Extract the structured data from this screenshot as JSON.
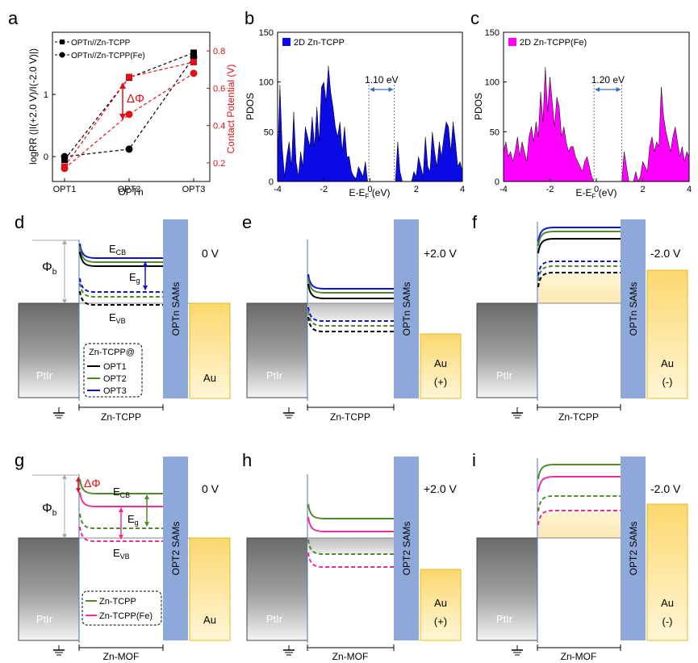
{
  "colors": {
    "black": "#000000",
    "green": "#4f8a2b",
    "blue": "#1010dd",
    "pink": "#ee2d9c",
    "red": "#e0101a",
    "pdos_blue": "#0b0be6",
    "pdos_magenta": "#ff00ff",
    "sam_blue": "#8ea9d9",
    "au_fill": "#fde9a8",
    "au_border": "#e6b822",
    "band_fill": "#fcefc8",
    "gray_fill": "#cccccc"
  },
  "panels": {
    "a": "a",
    "b": "b",
    "c": "c",
    "d": "d",
    "e": "e",
    "f": "f",
    "g": "g",
    "h": "h",
    "i": "i"
  },
  "chart_data": [
    {
      "id": "a",
      "type": "line",
      "categories": [
        "OPT1",
        "OPT2",
        "OPT3"
      ],
      "xlabel": "OPTn",
      "ylabel": "logRR (|I(+2.0 V)/I(-2.0 V)|)",
      "y2label": "Contact Potential (V)",
      "ylim": [
        -0.4,
        2.0
      ],
      "yticks": [
        0,
        1
      ],
      "y2lim": [
        0.1,
        0.9
      ],
      "y2ticks": [
        0.2,
        0.4,
        0.6,
        0.8
      ],
      "annotation": "ΔΦ",
      "series": [
        {
          "name": "OPTn//Zn-TCPP",
          "axis": "left",
          "marker": "square",
          "color": "#000000",
          "values": [
            -0.05,
            1.27,
            1.67
          ]
        },
        {
          "name": "OPTn//Zn-TCPP(Fe)",
          "axis": "left",
          "marker": "circle",
          "color": "#000000",
          "values": [
            0.0,
            0.12,
            1.6
          ]
        },
        {
          "axis": "right",
          "marker": "square",
          "color": "#e0101a",
          "values": [
            0.18,
            0.66,
            0.74
          ]
        },
        {
          "axis": "right",
          "marker": "circle",
          "color": "#e0101a",
          "values": [
            0.17,
            0.46,
            0.68
          ]
        }
      ]
    },
    {
      "id": "b",
      "type": "area",
      "legend": "2D Zn-TCPP",
      "xlabel": "E-E",
      "xlabel_sub": "F",
      "xlabel_unit": " (eV)",
      "ylabel": "PDOS",
      "xlim": [
        -4,
        4
      ],
      "xticks": [
        -4,
        -2,
        0,
        2,
        4
      ],
      "ylim": [
        0,
        150
      ],
      "yticks": [
        0,
        50,
        100,
        150
      ],
      "gap_label": "1.10 eV",
      "gap": [
        -0.05,
        1.05
      ],
      "color": "#0b0be6",
      "x": [
        -4.0,
        -3.9,
        -3.8,
        -3.7,
        -3.6,
        -3.5,
        -3.4,
        -3.3,
        -3.2,
        -3.1,
        -3.0,
        -2.9,
        -2.8,
        -2.7,
        -2.6,
        -2.5,
        -2.4,
        -2.3,
        -2.2,
        -2.1,
        -2.0,
        -1.9,
        -1.8,
        -1.7,
        -1.6,
        -1.5,
        -1.4,
        -1.3,
        -1.2,
        -1.1,
        -1.0,
        -0.9,
        -0.8,
        -0.7,
        -0.6,
        -0.5,
        -0.4,
        -0.3,
        -0.2,
        -0.1,
        0.0,
        0.1,
        0.2,
        0.3,
        0.4,
        0.5,
        0.6,
        0.7,
        0.8,
        0.9,
        1.0,
        1.1,
        1.2,
        1.3,
        1.4,
        1.5,
        1.6,
        1.7,
        1.8,
        1.9,
        2.0,
        2.1,
        2.2,
        2.3,
        2.4,
        2.5,
        2.6,
        2.7,
        2.8,
        2.9,
        3.0,
        3.1,
        3.2,
        3.3,
        3.4,
        3.5,
        3.6,
        3.7,
        3.8,
        3.9,
        4.0
      ],
      "y": [
        20,
        97,
        35,
        5,
        25,
        40,
        15,
        70,
        20,
        5,
        30,
        15,
        55,
        45,
        35,
        65,
        35,
        75,
        40,
        95,
        100,
        80,
        116,
        90,
        75,
        55,
        45,
        60,
        30,
        55,
        25,
        25,
        10,
        5,
        3,
        15,
        10,
        5,
        20,
        0,
        0,
        0,
        0,
        0,
        0,
        0,
        0,
        0,
        0,
        0,
        0,
        0,
        40,
        10,
        0,
        0,
        0,
        0,
        0,
        10,
        5,
        25,
        15,
        5,
        45,
        15,
        10,
        50,
        30,
        15,
        40,
        25,
        45,
        60,
        55,
        30,
        60,
        40,
        15,
        20,
        10
      ]
    },
    {
      "id": "c",
      "type": "area",
      "legend": "2D Zn-TCPP(Fe)",
      "xlabel": "E-E",
      "xlabel_sub": "F",
      "xlabel_unit": " (eV)",
      "ylabel": "PDOS",
      "xlim": [
        -4,
        4
      ],
      "xticks": [
        -4,
        -2,
        0,
        2,
        4
      ],
      "ylim": [
        0,
        150
      ],
      "yticks": [
        0,
        50,
        100,
        150
      ],
      "gap_label": "1.20 eV",
      "gap": [
        -0.1,
        1.1
      ],
      "color": "#ff00ff",
      "x": [
        -4.0,
        -3.9,
        -3.8,
        -3.7,
        -3.6,
        -3.5,
        -3.4,
        -3.3,
        -3.2,
        -3.1,
        -3.0,
        -2.9,
        -2.8,
        -2.7,
        -2.6,
        -2.5,
        -2.4,
        -2.3,
        -2.2,
        -2.1,
        -2.0,
        -1.9,
        -1.8,
        -1.7,
        -1.6,
        -1.5,
        -1.4,
        -1.3,
        -1.2,
        -1.1,
        -1.0,
        -0.9,
        -0.8,
        -0.7,
        -0.6,
        -0.5,
        -0.4,
        -0.3,
        -0.2,
        -0.1,
        0.0,
        0.1,
        0.2,
        0.3,
        0.4,
        0.5,
        0.6,
        0.7,
        0.8,
        0.9,
        1.0,
        1.1,
        1.2,
        1.3,
        1.4,
        1.5,
        1.6,
        1.7,
        1.8,
        1.9,
        2.0,
        2.1,
        2.2,
        2.3,
        2.4,
        2.5,
        2.6,
        2.7,
        2.8,
        2.9,
        3.0,
        3.1,
        3.2,
        3.3,
        3.4,
        3.5,
        3.6,
        3.7,
        3.8,
        3.9,
        4.0
      ],
      "y": [
        30,
        40,
        25,
        30,
        20,
        30,
        45,
        25,
        40,
        30,
        20,
        45,
        55,
        40,
        60,
        45,
        90,
        60,
        115,
        70,
        105,
        80,
        55,
        85,
        75,
        45,
        55,
        40,
        30,
        35,
        35,
        25,
        20,
        15,
        10,
        20,
        25,
        15,
        5,
        0,
        0,
        0,
        0,
        0,
        0,
        0,
        0,
        0,
        0,
        0,
        0,
        0,
        30,
        15,
        0,
        0,
        0,
        10,
        0,
        5,
        20,
        15,
        10,
        35,
        45,
        30,
        40,
        35,
        95,
        65,
        50,
        40,
        30,
        45,
        55,
        40,
        25,
        35,
        20,
        30,
        25
      ]
    }
  ],
  "diagrams": {
    "d": {
      "voltage": "0 V",
      "sams": "OPTn SAMs",
      "left_electrode": "PtIr",
      "au": "Au",
      "bottom": "Zn-TCPP",
      "ecb": "E",
      "ecb_sub": "CB",
      "eg": "E",
      "eg_sub": "g",
      "evb": "E",
      "evb_sub": "VB",
      "phi": "Φ",
      "phi_sub": "b",
      "legend_title": "Zn-TCPP@",
      "legend": [
        "OPT1",
        "OPT2",
        "OPT3"
      ]
    },
    "e": {
      "voltage": "+2.0 V",
      "sams": "OPTn SAMs",
      "left_electrode": "PtIr",
      "au": "Au",
      "au_sign": "(+)",
      "bottom": "Zn-TCPP"
    },
    "f": {
      "voltage": "-2.0 V",
      "sams": "OPTn SAMs",
      "left_electrode": "PtIr",
      "au": "Au",
      "au_sign": "(-)",
      "bottom": "Zn-TCPP"
    },
    "g": {
      "voltage": "0 V",
      "sams": "OPT2 SAMs",
      "left_electrode": "PtIr",
      "au": "Au",
      "bottom": "Zn-MOF",
      "ecb": "E",
      "ecb_sub": "CB",
      "eg": "E",
      "eg_sub": "g",
      "evb": "E",
      "evb_sub": "VB",
      "phi": "Φ",
      "phi_sub": "b",
      "delta_phi": "ΔΦ",
      "legend": [
        "Zn-TCPP",
        "Zn-TCPP(Fe)"
      ]
    },
    "h": {
      "voltage": "+2.0 V",
      "sams": "OPT2 SAMs",
      "left_electrode": "PtIr",
      "au": "Au",
      "au_sign": "(+)",
      "bottom": "Zn-MOF"
    },
    "i": {
      "voltage": "-2.0 V",
      "sams": "OPT2 SAMs",
      "left_electrode": "PtIr",
      "au": "Au",
      "au_sign": "(-)",
      "bottom": "Zn-MOF"
    }
  }
}
